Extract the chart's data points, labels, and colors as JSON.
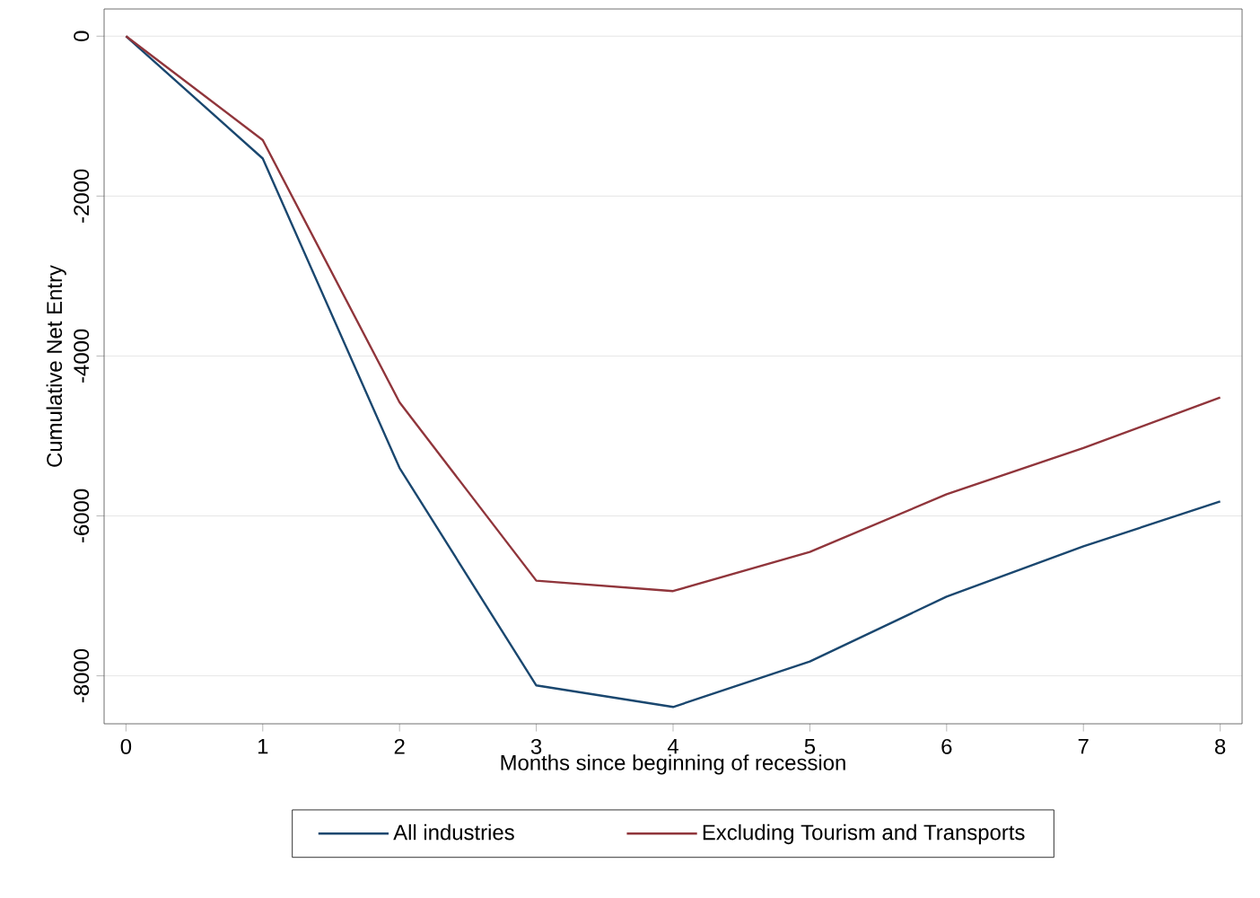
{
  "chart_data": {
    "type": "line",
    "xlabel": "Months since beginning of recession",
    "ylabel": "Cumulative Net Entry",
    "x": [
      0,
      1,
      2,
      3,
      4,
      5,
      6,
      7,
      8
    ],
    "series": [
      {
        "name": "All industries",
        "color": "#1a476f",
        "values": [
          0,
          -1530,
          -5400,
          -8120,
          -8390,
          -7820,
          -7010,
          -6380,
          -5820
        ]
      },
      {
        "name": "Excluding Tourism and Transports",
        "color": "#90353b",
        "values": [
          0,
          -1300,
          -4580,
          -6810,
          -6940,
          -6450,
          -5730,
          -5150,
          -4520
        ]
      }
    ],
    "xlim": [
      -0.16,
      8.16
    ],
    "ylim": [
      -8600,
      340
    ],
    "xticks": [
      0,
      1,
      2,
      3,
      4,
      5,
      6,
      7,
      8
    ],
    "yticks": [
      -8000,
      -6000,
      -4000,
      -2000,
      0
    ],
    "grid": "y",
    "legend": "bottom",
    "marker": "none",
    "line_style": "solid"
  }
}
